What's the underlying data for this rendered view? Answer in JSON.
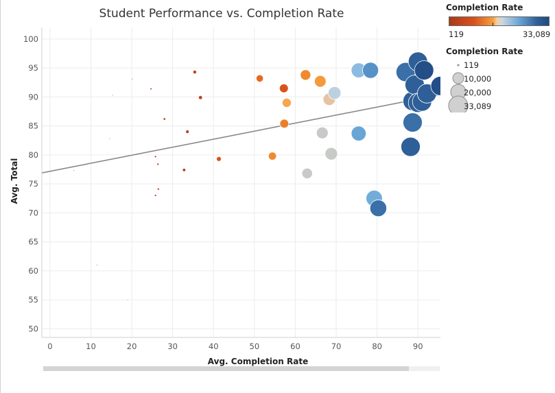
{
  "chart_data": {
    "type": "scatter",
    "title": "Student Performance vs. Completion Rate",
    "xlabel": "Avg. Completion Rate",
    "ylabel": "Avg. Total",
    "xlim": [
      -2,
      95.5
    ],
    "ylim": [
      48.5,
      102
    ],
    "x_ticks": [
      "0",
      "10",
      "20",
      "30",
      "40",
      "50",
      "60",
      "70",
      "80",
      "90"
    ],
    "y_ticks": [
      "50",
      "55",
      "60",
      "65",
      "70",
      "75",
      "80",
      "85",
      "90",
      "95",
      "100"
    ],
    "grid": true,
    "trendline": {
      "from": [
        -2,
        76.9
      ],
      "to": [
        95.5,
        90.4
      ],
      "color": "#888888"
    },
    "legend_position": "right",
    "color_legend": {
      "title": "Completion Rate",
      "min_label": "119",
      "max_label": "33,089"
    },
    "size_legend": {
      "title": "Completion Rate",
      "entries": [
        "119",
        "10,000",
        "20,000",
        "33,089"
      ]
    },
    "points": [
      {
        "x": 5.8,
        "y": 77.3,
        "color": "#b5411c"
      },
      {
        "x": 11.5,
        "y": 61.0,
        "color": "#b5411c"
      },
      {
        "x": 14.6,
        "y": 82.8,
        "color": "#b5411c"
      },
      {
        "x": 15.3,
        "y": 90.3,
        "color": "#b5411c"
      },
      {
        "x": 19.0,
        "y": 55.0,
        "color": "#b5411c"
      },
      {
        "x": 20.1,
        "y": 93.1,
        "color": "#b5411c"
      },
      {
        "x": 24.7,
        "y": 91.4,
        "color": "#b5411c"
      },
      {
        "x": 25.8,
        "y": 79.7,
        "color": "#b5411c"
      },
      {
        "x": 25.8,
        "y": 73.0,
        "color": "#b5411c"
      },
      {
        "x": 26.4,
        "y": 78.4,
        "color": "#b5411c"
      },
      {
        "x": 26.5,
        "y": 74.1,
        "color": "#b5411c"
      },
      {
        "x": 28.0,
        "y": 86.2,
        "color": "#b5411c"
      },
      {
        "x": 32.8,
        "y": 77.4,
        "color": "#b5411c"
      },
      {
        "x": 33.6,
        "y": 84.0,
        "color": "#b5411c"
      },
      {
        "x": 35.4,
        "y": 94.3,
        "color": "#bc4320"
      },
      {
        "x": 36.8,
        "y": 89.9,
        "color": "#bc4320"
      },
      {
        "x": 41.3,
        "y": 79.3,
        "color": "#d9521e"
      },
      {
        "x": 51.3,
        "y": 93.2,
        "color": "#e8691f"
      },
      {
        "x": 54.4,
        "y": 79.8,
        "color": "#f08a2e"
      },
      {
        "x": 57.2,
        "y": 91.5,
        "color": "#d9521e"
      },
      {
        "x": 57.3,
        "y": 85.4,
        "color": "#ec7f2a"
      },
      {
        "x": 57.9,
        "y": 89.0,
        "color": "#f8a54c"
      },
      {
        "x": 62.5,
        "y": 93.8,
        "color": "#f08a2e"
      },
      {
        "x": 62.9,
        "y": 76.8,
        "color": "#c8cac8"
      },
      {
        "x": 66.1,
        "y": 92.7,
        "color": "#f49a3c"
      },
      {
        "x": 66.6,
        "y": 83.8,
        "color": "#c8cac8"
      },
      {
        "x": 68.3,
        "y": 89.6,
        "color": "#e6c3a2"
      },
      {
        "x": 68.8,
        "y": 80.2,
        "color": "#c8cac8"
      },
      {
        "x": 69.6,
        "y": 90.7,
        "color": "#bdd0df"
      },
      {
        "x": 75.5,
        "y": 94.6,
        "color": "#8bbbe0"
      },
      {
        "x": 75.5,
        "y": 83.7,
        "color": "#6aa5d6"
      },
      {
        "x": 78.4,
        "y": 94.6,
        "color": "#5692c8"
      },
      {
        "x": 79.3,
        "y": 72.5,
        "color": "#72acd9"
      },
      {
        "x": 80.3,
        "y": 70.8,
        "color": "#3a6fa8"
      },
      {
        "x": 87.0,
        "y": 94.3,
        "color": "#3a6fa8"
      },
      {
        "x": 88.2,
        "y": 81.4,
        "color": "#2f5f98"
      },
      {
        "x": 88.7,
        "y": 85.6,
        "color": "#3a6fa8"
      },
      {
        "x": 88.7,
        "y": 89.3,
        "color": "#2f5f98"
      },
      {
        "x": 89.2,
        "y": 92.1,
        "color": "#2f5f98"
      },
      {
        "x": 90.0,
        "y": 96.1,
        "color": "#2f5f98"
      },
      {
        "x": 90.0,
        "y": 89.0,
        "color": "#2f5f98"
      },
      {
        "x": 91.0,
        "y": 89.2,
        "color": "#2f5f98"
      },
      {
        "x": 91.5,
        "y": 94.6,
        "color": "#234e88"
      },
      {
        "x": 92.2,
        "y": 90.6,
        "color": "#2f5f98"
      },
      {
        "x": 95.5,
        "y": 91.9,
        "color": "#234e88"
      }
    ]
  }
}
